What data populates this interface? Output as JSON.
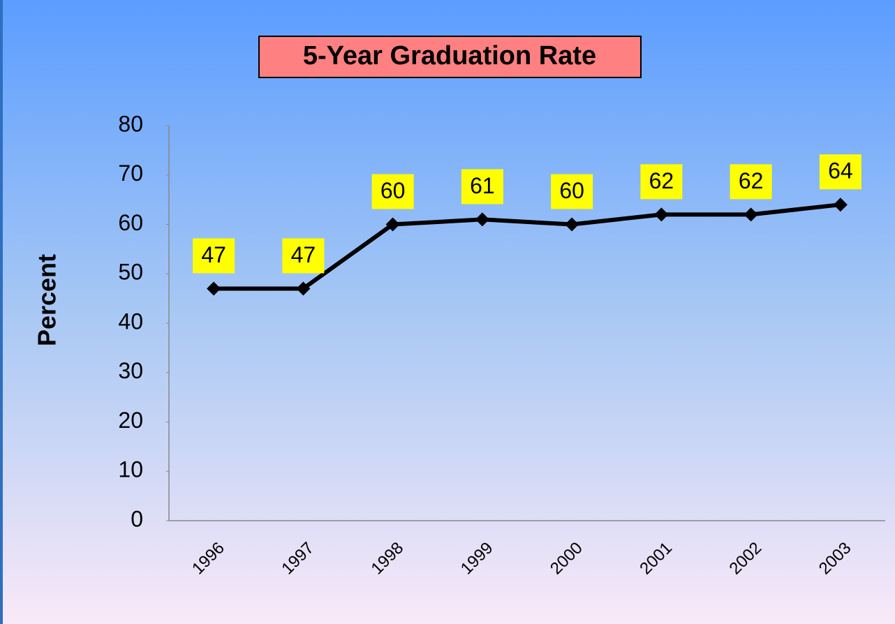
{
  "chart_data": {
    "type": "line",
    "title": "5-Year Graduation Rate",
    "y_label": "Percent",
    "categories": [
      "1996",
      "1997",
      "1998",
      "1999",
      "2000",
      "2001",
      "2002",
      "2003"
    ],
    "values": [
      47,
      47,
      60,
      61,
      60,
      62,
      62,
      64
    ],
    "color": "#000000",
    "ylim": [
      0,
      80
    ],
    "yticks": [
      0,
      10,
      20,
      30,
      40,
      50,
      60,
      70,
      80
    ],
    "grid": false
  }
}
